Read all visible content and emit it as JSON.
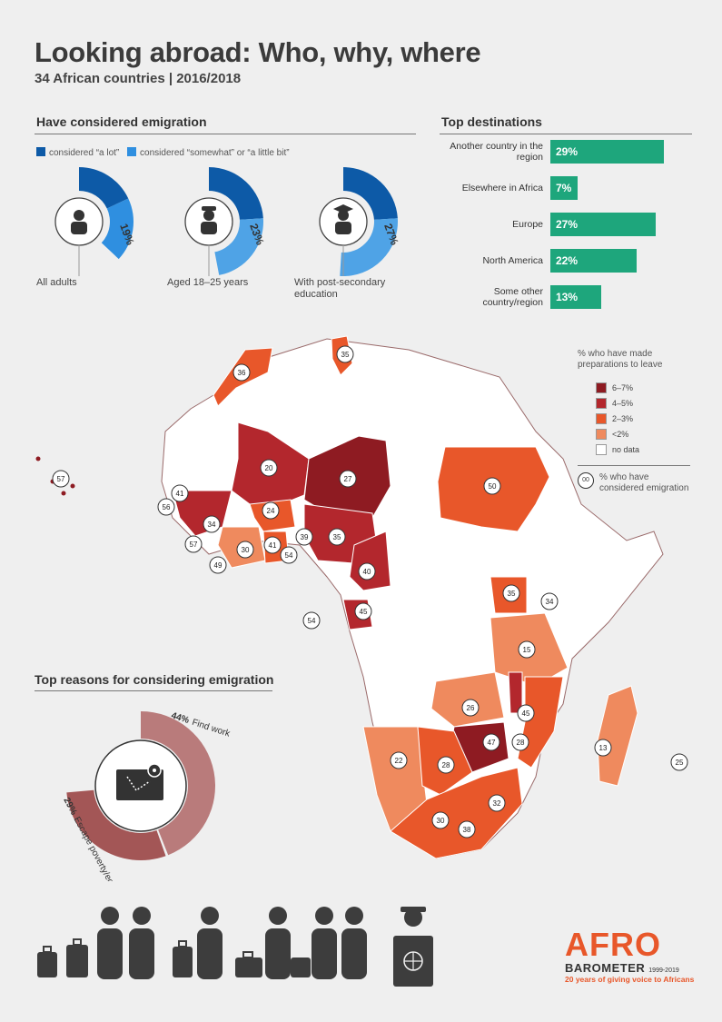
{
  "header": {
    "title": "Looking abroad: Who, why, where",
    "subtitle": "34 African countries | 2016/2018"
  },
  "emigration_section": {
    "heading": "Have considered emigration",
    "legend_a_lot": "considered “a lot”",
    "legend_somewhat": "considered “somewhat” or “a little bit”",
    "colors": {
      "a_lot": "#0d5aa7",
      "somewhat": "#2f8fe0",
      "somewhat_light": "#4fa3e6"
    },
    "groups": [
      {
        "label": "All adults",
        "label2": "",
        "a_lot": "18%",
        "somewhat": "19%",
        "icon": "person-icon"
      },
      {
        "label": "Aged 18–25 years",
        "label2": "",
        "a_lot": "24%",
        "somewhat": "23%",
        "icon": "cap-person-icon"
      },
      {
        "label": "With post-secondary",
        "label2": "education",
        "a_lot": "24%",
        "somewhat": "27%",
        "icon": "graduate-icon"
      }
    ]
  },
  "destinations_section": {
    "heading": "Top destinations",
    "color": "#1ea67c"
  },
  "map_section": {
    "legend_title_1": "% who have made",
    "legend_title_2": "preparations to leave",
    "legend_items": [
      {
        "label": "6–7%",
        "color": "#8e1b22"
      },
      {
        "label": "4–5%",
        "color": "#b3272d"
      },
      {
        "label": "2–3%",
        "color": "#e8572a"
      },
      {
        "label": "<2%",
        "color": "#ef8a5e"
      },
      {
        "label": "no data",
        "color": "#ffffff"
      }
    ],
    "bubble_key": "00",
    "bubble_text_1": "% who have",
    "bubble_text_2": "considered emigration",
    "country_values": [
      "36",
      "35",
      "20",
      "27",
      "50",
      "41",
      "56",
      "34",
      "24",
      "57",
      "30",
      "41",
      "54",
      "39",
      "35",
      "49",
      "40",
      "35",
      "34",
      "45",
      "54",
      "15",
      "26",
      "45",
      "47",
      "28",
      "22",
      "28",
      "32",
      "30",
      "38",
      "13",
      "25",
      "57"
    ]
  },
  "reasons_section": {
    "heading": "Top reasons for considering emigration",
    "reason1_pct": "44%",
    "reason1_text": "Find work",
    "reason2_pct": "29%",
    "reason2_text": "Escape poverty/economic hardship",
    "colors": {
      "work": "#b97b7b",
      "poverty": "#a35656"
    }
  },
  "logo": {
    "name": "AFRO",
    "name2": "BAROMETER",
    "years": "1999-2019",
    "tagline": "20 years of giving voice to Africans",
    "color": "#e8572a"
  },
  "chart_data": [
    {
      "type": "bar",
      "title": "Top destinations",
      "categories": [
        "Another country in the region",
        "Elsewhere in Africa",
        "Europe",
        "North America",
        "Some other country/region"
      ],
      "values": [
        29,
        7,
        27,
        22,
        13
      ],
      "labels": [
        "29%",
        "7%",
        "27%",
        "22%",
        "13%"
      ],
      "orientation": "horizontal"
    },
    {
      "type": "pie",
      "title": "Have considered emigration",
      "series": [
        {
          "name": "All adults",
          "values": [
            18,
            19
          ]
        },
        {
          "name": "Aged 18–25 years",
          "values": [
            24,
            23
          ]
        },
        {
          "name": "With post-secondary education",
          "values": [
            24,
            27
          ]
        }
      ],
      "categories": [
        "considered “a lot”",
        "considered “somewhat” or “a little bit”"
      ]
    },
    {
      "type": "pie",
      "title": "Top reasons for considering emigration",
      "categories": [
        "Find work",
        "Escape poverty/economic hardship"
      ],
      "values": [
        44,
        29
      ]
    }
  ]
}
